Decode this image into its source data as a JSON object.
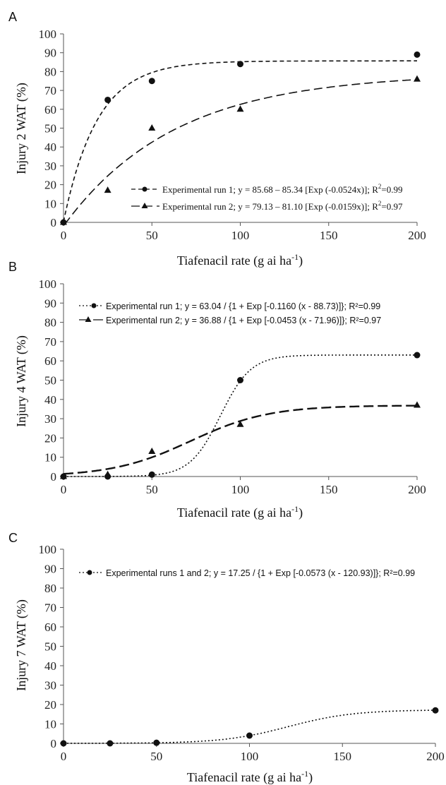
{
  "chart_data": [
    {
      "type": "scatter",
      "panel_label": "A",
      "xlabel": "Tiafenacil rate (g ai ha",
      "xlabel_sup": "-1",
      "xlabel_end": ")",
      "ylabel": "Injury 2 WAT (%)",
      "xlim": [
        0,
        200
      ],
      "ylim": [
        0,
        100
      ],
      "xticks": [
        0,
        50,
        100,
        150,
        200
      ],
      "yticks": [
        0,
        10,
        20,
        30,
        40,
        50,
        60,
        70,
        80,
        90,
        100
      ],
      "legend_placement": "bottom-right",
      "series": [
        {
          "marker": "circle",
          "dash": "6,4",
          "legend": "Experimental run 1; y = 85.68 – 85.34 [Exp (-0.0524x)]; R",
          "legend_r2": "=0.99",
          "legend_sup": "2",
          "points": [
            [
              0,
              0
            ],
            [
              25,
              65
            ],
            [
              50,
              75
            ],
            [
              100,
              84
            ],
            [
              200,
              89
            ]
          ],
          "model": {
            "kind": "exp",
            "a": 85.68,
            "b": 85.34,
            "k": 0.0524
          }
        },
        {
          "marker": "triangle",
          "dash": "12,6",
          "legend": "Experimental run 2; y = 79.13 – 81.10 [Exp (-0.0159x)]; R",
          "legend_r2": "=0.97",
          "legend_sup": "2",
          "points": [
            [
              0,
              0
            ],
            [
              25,
              17
            ],
            [
              50,
              50
            ],
            [
              100,
              60
            ],
            [
              200,
              76
            ]
          ],
          "model": {
            "kind": "exp",
            "a": 79.13,
            "b": 81.1,
            "k": 0.0159
          }
        }
      ]
    },
    {
      "type": "scatter",
      "panel_label": "B",
      "xlabel": "Tiafenacil rate (g ai ha",
      "xlabel_sup": "-1",
      "xlabel_end": ")",
      "ylabel": "Injury 4 WAT (%)",
      "xlim": [
        0,
        200
      ],
      "ylim": [
        0,
        100
      ],
      "xticks": [
        0,
        50,
        100,
        150,
        200
      ],
      "yticks": [
        0,
        10,
        20,
        30,
        40,
        50,
        60,
        70,
        80,
        90,
        100
      ],
      "legend_placement": "top-left",
      "series": [
        {
          "marker": "circle",
          "dash": "2,3",
          "legend": "Experimental run 1; y = 63.04 / {1 + Exp [-0.1160 (x - 88.73)]}; R²=0.99",
          "points": [
            [
              0,
              0
            ],
            [
              25,
              0
            ],
            [
              50,
              1
            ],
            [
              100,
              50
            ],
            [
              200,
              63
            ]
          ],
          "model": {
            "kind": "logistic",
            "a": 63.04,
            "k": 0.116,
            "x0": 88.73
          }
        },
        {
          "marker": "triangle",
          "dash": "14,6",
          "legend": "Experimental run 2; y = 36.88 / {1 + Exp [-0.0453 (x - 71.96)]}; R²=0.97",
          "points": [
            [
              0,
              0
            ],
            [
              25,
              1
            ],
            [
              50,
              13
            ],
            [
              100,
              27
            ],
            [
              200,
              37
            ]
          ],
          "model": {
            "kind": "logistic",
            "a": 36.88,
            "k": 0.0453,
            "x0": 71.96
          }
        }
      ]
    },
    {
      "type": "scatter",
      "panel_label": "C",
      "xlabel": "Tiafenacil rate (g ai ha",
      "xlabel_sup": "-1",
      "xlabel_end": ")",
      "ylabel": "Injury 7 WAT (%)",
      "xlim": [
        0,
        200
      ],
      "ylim": [
        0,
        100
      ],
      "xticks": [
        0,
        50,
        100,
        150,
        200
      ],
      "yticks": [
        0,
        10,
        20,
        30,
        40,
        50,
        60,
        70,
        80,
        90,
        100
      ],
      "legend_placement": "top-left",
      "series": [
        {
          "marker": "circle",
          "dash": "2,3",
          "legend": "Experimental runs 1 and 2; y = 17.25 / {1 + Exp [-0.0573 (x - 120.93)]}; R²=0.99",
          "points": [
            [
              0,
              0
            ],
            [
              25,
              0
            ],
            [
              50,
              0.3
            ],
            [
              100,
              4
            ],
            [
              200,
              17
            ]
          ],
          "model": {
            "kind": "logistic",
            "a": 17.25,
            "k": 0.0573,
            "x0": 120.93
          }
        }
      ]
    }
  ]
}
